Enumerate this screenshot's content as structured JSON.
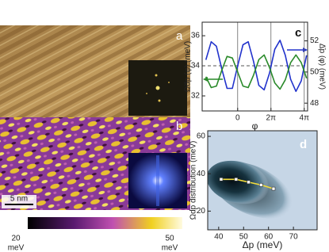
{
  "panels": {
    "a": {
      "label": "a"
    },
    "b": {
      "label": "b",
      "scale_bar": "5 nm"
    }
  },
  "colorbar": {
    "ticks": [
      20,
      50
    ],
    "unit": "meV"
  },
  "chart_data": [
    {
      "type": "line",
      "label": "c",
      "x": [
        -6,
        -5,
        -4,
        -3,
        -2,
        -1,
        0,
        1,
        2,
        3,
        4,
        5,
        6,
        7,
        8,
        9,
        10,
        11,
        12,
        13
      ],
      "series": [
        {
          "color": "#2233cc",
          "values": [
            34.4,
            35.6,
            35.3,
            33.8,
            32.5,
            32.5,
            34.0,
            35.4,
            35.6,
            34.3,
            32.7,
            32.4,
            33.5,
            35.1,
            35.7,
            34.7,
            33.1,
            32.3,
            33.0,
            34.7
          ]
        },
        {
          "color": "#2a8a2a",
          "axis": "y2",
          "values": [
            49.7,
            49.0,
            49.1,
            50.1,
            51.0,
            50.9,
            50.0,
            49.1,
            49.0,
            49.8,
            50.8,
            51.1,
            50.3,
            49.3,
            48.9,
            49.5,
            50.6,
            51.1,
            50.6,
            49.6
          ]
        }
      ],
      "xlim": [
        -6.7,
        13.2
      ],
      "xticks": [
        0,
        {
          "value": 6.283,
          "label": "2π"
        },
        {
          "value": 12.566,
          "label": "4π"
        }
      ],
      "ylim": [
        31,
        36.9
      ],
      "yticks": [
        32,
        34,
        36
      ],
      "y2lim": [
        47.5,
        53.2
      ],
      "y2ticks": [
        48,
        50,
        52
      ],
      "reference_line": 34,
      "grid": true,
      "xlabel": "φ",
      "ylabel": "Ω̃dp (φ)  (meV)",
      "y2label": "Δ̄p (φ)  (meV)"
    },
    {
      "type": "line",
      "label": "d",
      "x": [
        41,
        47,
        52,
        57,
        62
      ],
      "series": [
        {
          "color": "#f2dc3a",
          "values": [
            37,
            37,
            35.5,
            34,
            32
          ]
        }
      ],
      "markers": "square",
      "xlim": [
        35.6,
        79.5
      ],
      "xticks": [
        40,
        50,
        60,
        70
      ],
      "ylim": [
        10,
        63
      ],
      "yticks": [
        20,
        40,
        60
      ],
      "xlabel": "Δp (meV)",
      "ylabel": "Ωdp distribution (meV)"
    }
  ]
}
